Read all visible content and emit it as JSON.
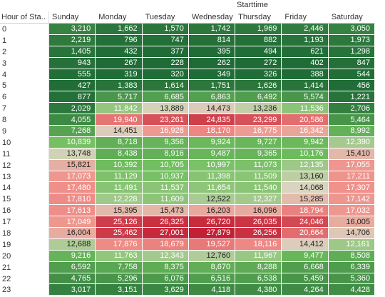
{
  "column_group_label": "Starttime",
  "row_header_label": "Hour of Sta..",
  "days": [
    "Sunday",
    "Monday",
    "Tuesday",
    "Wednesday",
    "Thursday",
    "Friday",
    "Saturday"
  ],
  "rows": [
    {
      "hour": "0",
      "values": [
        "3,210",
        "1,662",
        "1,570",
        "1,742",
        "1,969",
        "2,446",
        "3,050"
      ],
      "levels": [
        3210,
        1662,
        1570,
        1742,
        1969,
        2446,
        3050
      ]
    },
    {
      "hour": "1",
      "values": [
        "2,219",
        "796",
        "747",
        "814",
        "882",
        "1,193",
        "1,973"
      ],
      "levels": [
        2219,
        796,
        747,
        814,
        882,
        1193,
        1973
      ]
    },
    {
      "hour": "2",
      "values": [
        "1,405",
        "432",
        "377",
        "395",
        "494",
        "621",
        "1,298"
      ],
      "levels": [
        1405,
        432,
        377,
        395,
        494,
        621,
        1298
      ]
    },
    {
      "hour": "3",
      "values": [
        "943",
        "267",
        "228",
        "262",
        "272",
        "402",
        "847"
      ],
      "levels": [
        943,
        267,
        228,
        262,
        272,
        402,
        847
      ]
    },
    {
      "hour": "4",
      "values": [
        "555",
        "319",
        "320",
        "349",
        "326",
        "388",
        "544"
      ],
      "levels": [
        555,
        319,
        320,
        349,
        326,
        388,
        544
      ]
    },
    {
      "hour": "5",
      "values": [
        "427",
        "1,383",
        "1,614",
        "1,751",
        "1,626",
        "1,414",
        "456"
      ],
      "levels": [
        427,
        1383,
        1614,
        1751,
        1626,
        1414,
        456
      ]
    },
    {
      "hour": "6",
      "values": [
        "877",
        "5,717",
        "6,685",
        "6,863",
        "6,492",
        "5,574",
        "1,221"
      ],
      "levels": [
        877,
        5717,
        6685,
        6863,
        6492,
        5574,
        1221
      ]
    },
    {
      "hour": "7",
      "values": [
        "2,029",
        "11,842",
        "13,889",
        "14,473",
        "13,236",
        "11,536",
        "2,706"
      ],
      "levels": [
        2029,
        11842,
        13889,
        14473,
        13236,
        11536,
        2706
      ]
    },
    {
      "hour": "8",
      "values": [
        "4,055",
        "19,940",
        "23,261",
        "24,835",
        "23,299",
        "20,586",
        "5,464"
      ],
      "levels": [
        4055,
        19940,
        23261,
        24835,
        23299,
        20586,
        5464
      ]
    },
    {
      "hour": "9",
      "values": [
        "7,268",
        "14,451",
        "16,928",
        "18,170",
        "16,775",
        "16,342",
        "8,992"
      ],
      "levels": [
        7268,
        14451,
        16928,
        18170,
        16775,
        16342,
        8992
      ]
    },
    {
      "hour": "10",
      "values": [
        "10,839",
        "8,718",
        "9,356",
        "9,924",
        "9,727",
        "9,942",
        "12,390"
      ],
      "levels": [
        10839,
        8718,
        9356,
        9924,
        9727,
        9942,
        12390
      ]
    },
    {
      "hour": "11",
      "values": [
        "13,748",
        "8,438",
        "8,916",
        "9,487",
        "9,365",
        "10,176",
        "15,410"
      ],
      "levels": [
        13748,
        8438,
        8916,
        9487,
        9365,
        10176,
        15410
      ]
    },
    {
      "hour": "12",
      "values": [
        "15,821",
        "10,392",
        "10,705",
        "10,997",
        "11,073",
        "12,135",
        "17,055"
      ],
      "levels": [
        15821,
        10392,
        10705,
        10997,
        11073,
        12135,
        17055
      ]
    },
    {
      "hour": "13",
      "values": [
        "17,073",
        "11,129",
        "10,937",
        "11,398",
        "11,509",
        "13,160",
        "17,211"
      ],
      "levels": [
        17073,
        11129,
        10937,
        11398,
        11509,
        13160,
        17211
      ]
    },
    {
      "hour": "14",
      "values": [
        "17,480",
        "11,491",
        "11,537",
        "11,654",
        "11,540",
        "14,068",
        "17,307"
      ],
      "levels": [
        17480,
        11491,
        11537,
        11654,
        11540,
        14068,
        17307
      ]
    },
    {
      "hour": "15",
      "values": [
        "17,810",
        "12,228",
        "11,609",
        "12,522",
        "12,327",
        "15,285",
        "17,142"
      ],
      "levels": [
        17810,
        12228,
        11609,
        12522,
        12327,
        15285,
        17142
      ]
    },
    {
      "hour": "16",
      "values": [
        "17,613",
        "15,395",
        "15,473",
        "16,203",
        "16,096",
        "18,794",
        "17,032"
      ],
      "levels": [
        17613,
        15395,
        15473,
        16203,
        16096,
        18794,
        17032
      ]
    },
    {
      "hour": "17",
      "values": [
        "17,049",
        "25,126",
        "26,325",
        "26,720",
        "26,035",
        "24,046",
        "16,005"
      ],
      "levels": [
        17049,
        25126,
        26325,
        26720,
        26035,
        24046,
        16005
      ]
    },
    {
      "hour": "18",
      "values": [
        "16,004",
        "25,462",
        "27,001",
        "27,879",
        "26,256",
        "20,664",
        "14,706"
      ],
      "levels": [
        16004,
        25462,
        27001,
        27879,
        26256,
        20664,
        14706
      ]
    },
    {
      "hour": "19",
      "values": [
        "12,688",
        "17,876",
        "18,679",
        "19,527",
        "18,116",
        "14,412",
        "12,161"
      ],
      "levels": [
        12688,
        17876,
        18679,
        19527,
        18116,
        14412,
        12161
      ]
    },
    {
      "hour": "20",
      "values": [
        "9,216",
        "11,763",
        "12,343",
        "12,760",
        "11,967",
        "9,477",
        "8,508"
      ],
      "levels": [
        9216,
        11763,
        12343,
        12760,
        11967,
        9477,
        8508
      ]
    },
    {
      "hour": "21",
      "values": [
        "6,592",
        "7,758",
        "8,375",
        "8,670",
        "8,288",
        "6,668",
        "6,339"
      ],
      "levels": [
        6592,
        7758,
        8375,
        8670,
        8288,
        6668,
        6339
      ]
    },
    {
      "hour": "22",
      "values": [
        "4,765",
        "5,296",
        "6,076",
        "6,516",
        "6,538",
        "5,459",
        "5,360"
      ],
      "levels": [
        4765,
        5296,
        6076,
        6516,
        6538,
        5459,
        5360
      ]
    },
    {
      "hour": "23",
      "values": [
        "3,017",
        "3,151",
        "3,629",
        "4,118",
        "4,380",
        "4,264",
        "4,428"
      ],
      "levels": [
        3017,
        3151,
        3629,
        4118,
        4380,
        4264,
        4428
      ]
    }
  ],
  "color_scale": {
    "low": "#1f6b36",
    "mid_low": "#72bf5f",
    "neutral": "#d9d4bf",
    "mid_high": "#f0908a",
    "high": "#c22034",
    "min": 228,
    "max": 27879
  }
}
